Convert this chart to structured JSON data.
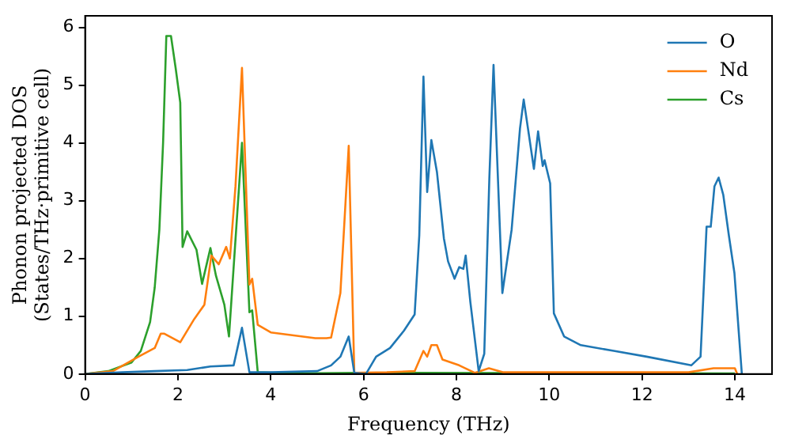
{
  "chart_data": {
    "type": "line",
    "xlabel": "Frequency (THz)",
    "ylabel": "Phonon projected DOS\n(States/THz·primitive cell)",
    "xlim": [
      0,
      14.8
    ],
    "ylim": [
      0,
      6.2
    ],
    "xticks": [
      0,
      2,
      4,
      6,
      8,
      10,
      12,
      14
    ],
    "yticks": [
      0,
      1,
      2,
      3,
      4,
      5,
      6
    ],
    "grid": false,
    "legend": "top right",
    "marker": "none",
    "line_style": "solid",
    "series": [
      {
        "name": "O",
        "color": "#1f77b4",
        "x": [
          0,
          0.8,
          1.5,
          2.2,
          2.7,
          3.2,
          3.38,
          3.54,
          4.0,
          5.0,
          5.3,
          5.5,
          5.68,
          5.8,
          6.05,
          6.27,
          6.57,
          6.87,
          7.1,
          7.2,
          7.29,
          7.37,
          7.46,
          7.58,
          7.73,
          7.82,
          7.96,
          8.06,
          8.15,
          8.2,
          8.3,
          8.48,
          8.6,
          8.71,
          8.8,
          8.99,
          9.19,
          9.37,
          9.45,
          9.67,
          9.76,
          9.86,
          9.9,
          10.02,
          10.1,
          10.32,
          10.68,
          11.39,
          12.1,
          13.06,
          13.26,
          13.39,
          13.48,
          13.56,
          13.65,
          13.75,
          13.87,
          13.99,
          14.15
        ],
        "values": [
          0,
          0.03,
          0.05,
          0.07,
          0.13,
          0.15,
          0.8,
          0.03,
          0.03,
          0.05,
          0.15,
          0.3,
          0.65,
          0.02,
          0,
          0.3,
          0.45,
          0.75,
          1.03,
          2.4,
          5.15,
          3.15,
          4.05,
          3.5,
          2.35,
          1.95,
          1.65,
          1.85,
          1.82,
          2.05,
          1.25,
          0.05,
          0.35,
          3.4,
          5.35,
          1.4,
          2.5,
          4.25,
          4.75,
          3.55,
          4.2,
          3.6,
          3.7,
          3.3,
          1.05,
          0.65,
          0.5,
          0.4,
          0.3,
          0.15,
          0.3,
          2.55,
          2.55,
          3.25,
          3.4,
          3.1,
          2.4,
          1.75,
          0
        ]
      },
      {
        "name": "Nd",
        "color": "#ff7f0e",
        "x": [
          0,
          0.6,
          1.15,
          1.5,
          1.63,
          1.7,
          2.05,
          2.35,
          2.57,
          2.72,
          2.88,
          3.04,
          3.12,
          3.24,
          3.38,
          3.54,
          3.6,
          3.72,
          4.0,
          4.96,
          5.2,
          5.3,
          5.5,
          5.68,
          5.8,
          6.5,
          7.1,
          7.29,
          7.37,
          7.46,
          7.58,
          7.7,
          8.06,
          8.4,
          8.7,
          9.0,
          13.0,
          13.54,
          14.0,
          14.05
        ],
        "values": [
          0,
          0.05,
          0.3,
          0.45,
          0.7,
          0.7,
          0.55,
          0.95,
          1.2,
          2.05,
          1.9,
          2.2,
          2.0,
          3.25,
          5.3,
          1.55,
          1.65,
          0.85,
          0.72,
          0.62,
          0.62,
          0.63,
          1.4,
          3.95,
          0.02,
          0.03,
          0.05,
          0.4,
          0.3,
          0.5,
          0.5,
          0.25,
          0.15,
          0.02,
          0.1,
          0.03,
          0.03,
          0.1,
          0.1,
          0
        ]
      },
      {
        "name": "Cs",
        "color": "#2ca02c",
        "x": [
          0,
          0.5,
          1.0,
          1.2,
          1.4,
          1.5,
          1.6,
          1.68,
          1.75,
          1.85,
          1.95,
          2.05,
          2.1,
          2.2,
          2.4,
          2.52,
          2.7,
          2.82,
          3.0,
          3.1,
          3.38,
          3.54,
          3.6,
          3.72,
          4.5,
          6.0,
          14.0
        ],
        "values": [
          0,
          0.05,
          0.2,
          0.4,
          0.9,
          1.5,
          2.5,
          4.0,
          5.85,
          5.85,
          5.3,
          4.7,
          2.2,
          2.47,
          2.15,
          1.56,
          2.18,
          1.7,
          1.2,
          0.65,
          4.0,
          1.07,
          1.1,
          0.03,
          0.01,
          0.02,
          0.01
        ]
      }
    ]
  }
}
